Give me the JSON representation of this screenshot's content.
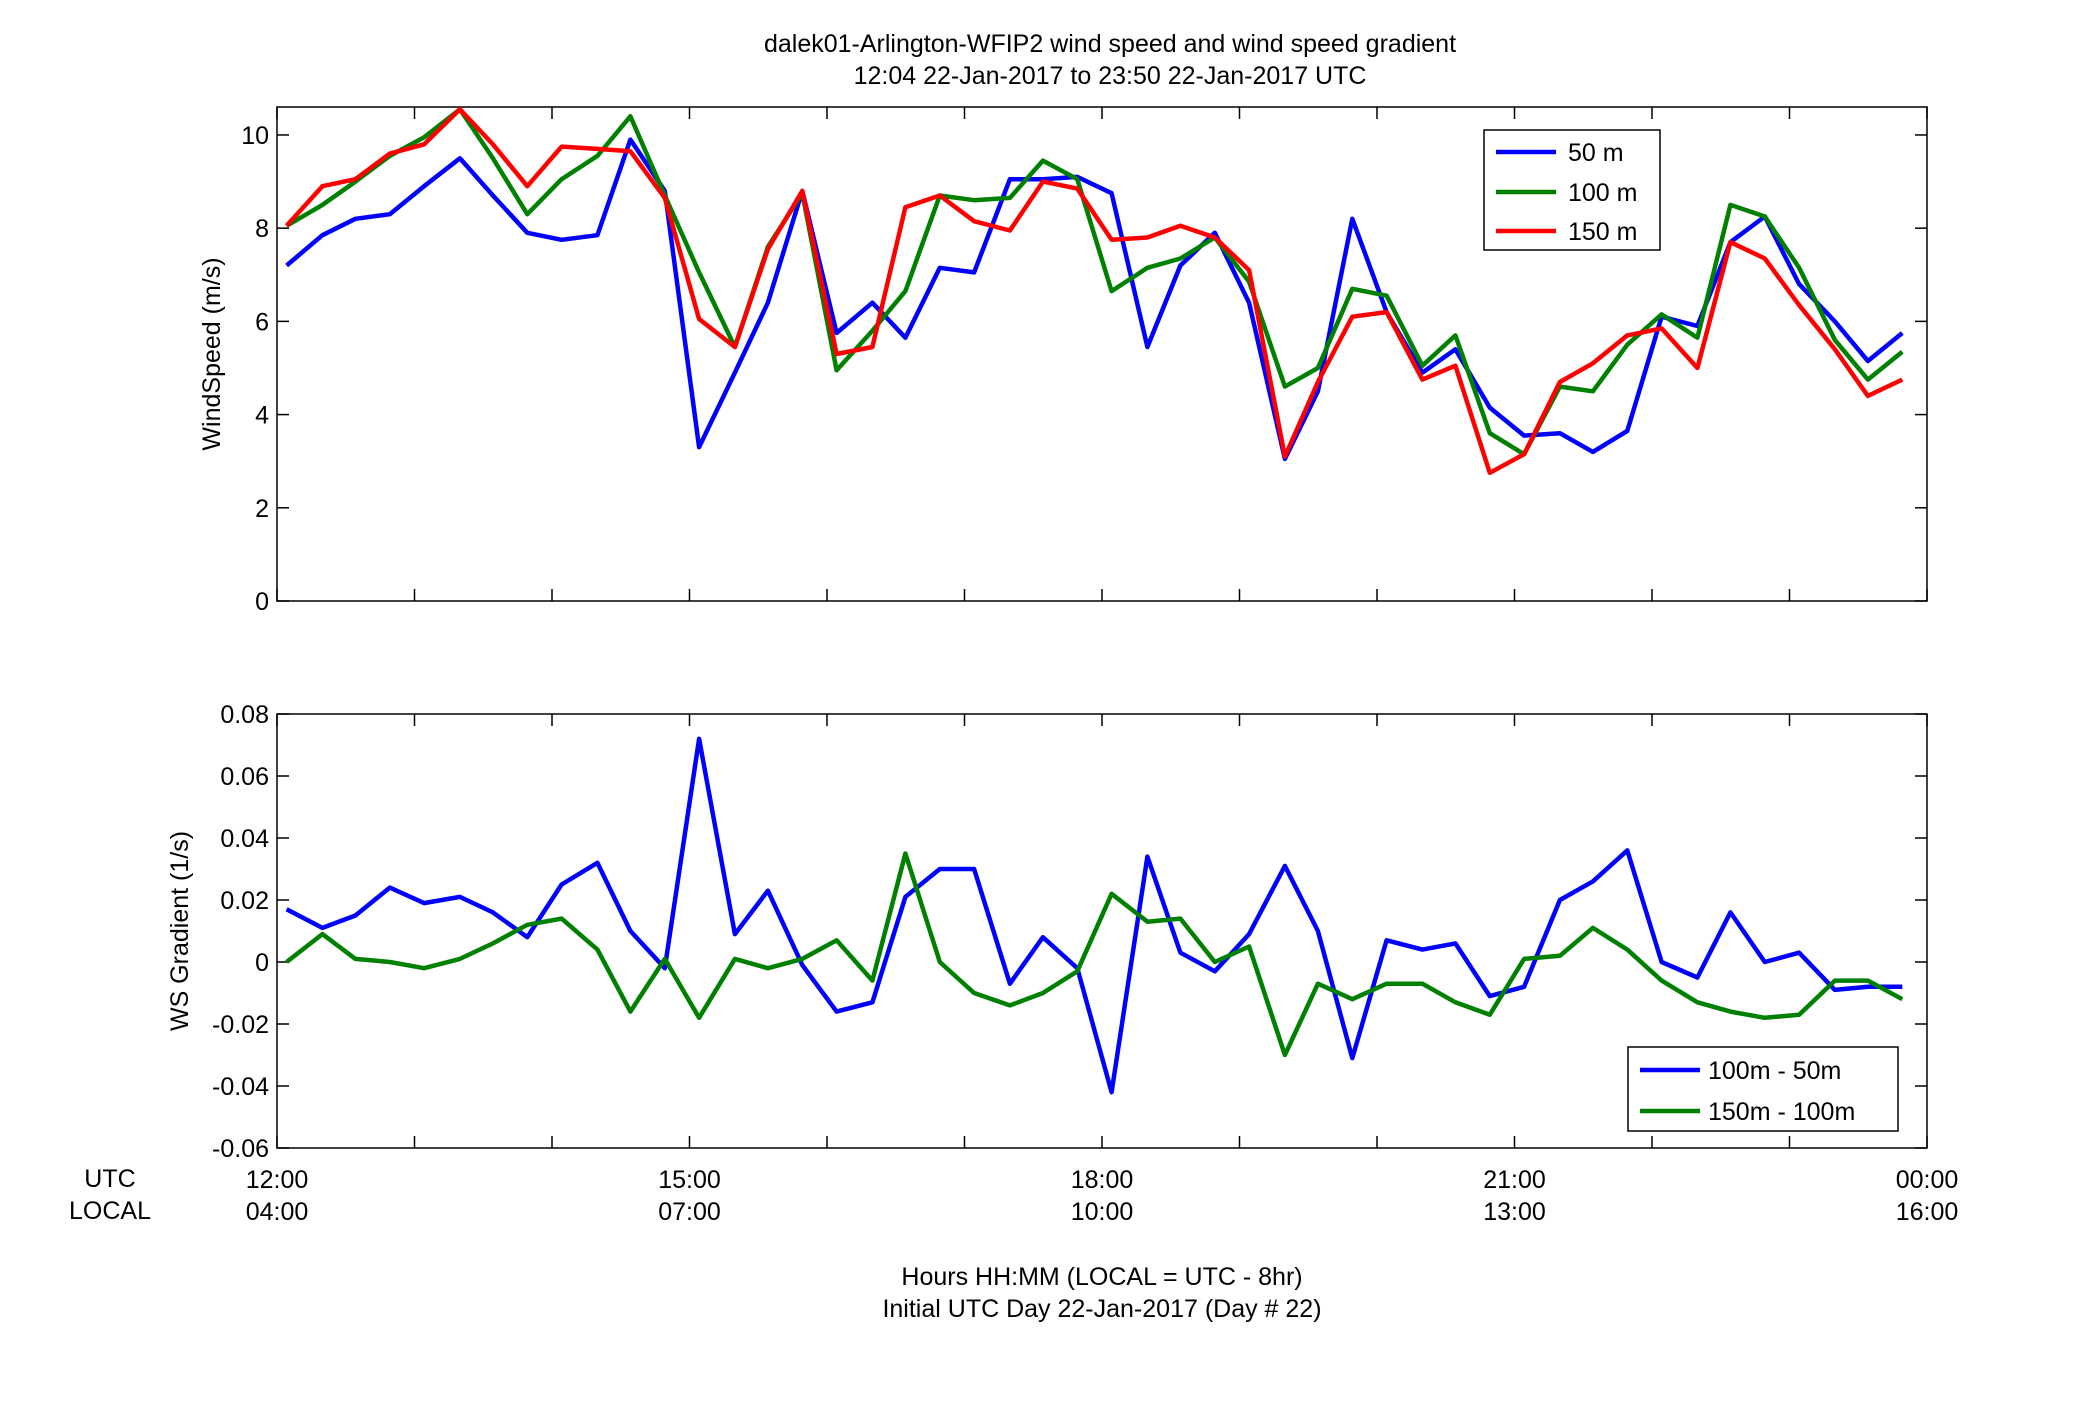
{
  "figure": {
    "title_line1": "dalek01-Arlington-WFIP2  wind speed and wind speed gradient",
    "title_line2": "12:04 22-Jan-2017 to 23:50 22-Jan-2017  UTC",
    "xlabel_line1": "Hours HH:MM  (LOCAL = UTC - 8hr)",
    "xlabel_line2": "Initial UTC Day 22-Jan-2017 (Day # 22)",
    "row_label_utc": "UTC",
    "row_label_local": "LOCAL"
  },
  "chart_data": [
    {
      "type": "line",
      "ylabel": "WindSpeed (m/s)",
      "xlim": [
        12,
        24
      ],
      "ylim": [
        0,
        10.6
      ],
      "yticks": [
        0,
        2,
        4,
        6,
        8,
        10
      ],
      "ytick_labels": [
        "0",
        "2",
        "4",
        "6",
        "8",
        "10"
      ],
      "grid": false,
      "legend": "top-right",
      "x": [
        12.07,
        12.33,
        12.57,
        12.82,
        13.07,
        13.33,
        13.57,
        13.82,
        14.07,
        14.33,
        14.57,
        14.82,
        15.07,
        15.33,
        15.57,
        15.82,
        16.07,
        16.33,
        16.57,
        16.82,
        17.07,
        17.33,
        17.57,
        17.82,
        18.07,
        18.33,
        18.57,
        18.82,
        19.07,
        19.33,
        19.57,
        19.82,
        20.07,
        20.33,
        20.57,
        20.82,
        21.07,
        21.33,
        21.57,
        21.82,
        22.07,
        22.33,
        22.57,
        22.82,
        23.07,
        23.33,
        23.57,
        23.82
      ],
      "series": [
        {
          "name": "50 m",
          "color": "#0000ff",
          "values": [
            7.2,
            7.85,
            8.2,
            8.3,
            8.9,
            9.5,
            8.7,
            7.9,
            7.75,
            7.85,
            9.9,
            8.8,
            3.3,
            4.9,
            6.4,
            8.8,
            5.75,
            6.4,
            5.65,
            7.15,
            7.05,
            9.05,
            9.05,
            9.1,
            8.75,
            5.45,
            7.2,
            7.9,
            6.4,
            3.05,
            4.5,
            8.2,
            6.2,
            4.9,
            5.4,
            4.15,
            3.55,
            3.6,
            3.2,
            3.65,
            6.1,
            5.9,
            7.7,
            8.25,
            6.8,
            6.0,
            5.15,
            5.75
          ]
        },
        {
          "name": "100 m",
          "color": "#008000",
          "values": [
            8.05,
            8.5,
            9.0,
            9.55,
            9.95,
            10.55,
            9.5,
            8.3,
            9.05,
            9.55,
            10.4,
            8.7,
            7.05,
            5.45,
            7.6,
            8.75,
            4.95,
            5.8,
            6.65,
            8.7,
            8.6,
            8.65,
            9.45,
            9.05,
            6.65,
            7.15,
            7.35,
            7.8,
            6.85,
            4.6,
            5.0,
            6.7,
            6.55,
            5.05,
            5.7,
            3.6,
            3.15,
            4.6,
            4.5,
            5.5,
            6.15,
            5.65,
            8.5,
            8.25,
            7.15,
            5.6,
            4.75,
            5.35
          ]
        },
        {
          "name": "150 m",
          "color": "#ff0000",
          "values": [
            8.05,
            8.9,
            9.05,
            9.6,
            9.8,
            10.55,
            9.8,
            8.9,
            9.75,
            9.7,
            9.65,
            8.65,
            6.05,
            5.45,
            7.55,
            8.8,
            5.3,
            5.45,
            8.45,
            8.7,
            8.15,
            7.95,
            9.0,
            8.85,
            7.75,
            7.8,
            8.05,
            7.8,
            7.1,
            3.1,
            4.7,
            6.1,
            6.2,
            4.75,
            5.05,
            2.75,
            3.15,
            4.7,
            5.1,
            5.7,
            5.85,
            5.0,
            7.7,
            7.35,
            6.35,
            5.4,
            4.4,
            4.75
          ]
        }
      ]
    },
    {
      "type": "line",
      "ylabel": "WS Gradient (1/s)",
      "xlim": [
        12,
        24
      ],
      "ylim": [
        -0.06,
        0.08
      ],
      "yticks": [
        -0.06,
        -0.04,
        -0.02,
        0,
        0.02,
        0.04,
        0.06,
        0.08
      ],
      "ytick_labels": [
        "-0.06",
        "-0.04",
        "-0.02",
        "0",
        "0.02",
        "0.04",
        "0.06",
        "0.08"
      ],
      "xticks": [
        12,
        15,
        18,
        21,
        24
      ],
      "xtick_labels_utc": [
        "12:00",
        "15:00",
        "18:00",
        "21:00",
        "00:00"
      ],
      "xtick_labels_local": [
        "04:00",
        "07:00",
        "10:00",
        "13:00",
        "16:00"
      ],
      "grid": false,
      "legend": "bottom-right",
      "x": [
        12.07,
        12.33,
        12.57,
        12.82,
        13.07,
        13.33,
        13.57,
        13.82,
        14.07,
        14.33,
        14.57,
        14.82,
        15.07,
        15.33,
        15.57,
        15.82,
        16.07,
        16.33,
        16.57,
        16.82,
        17.07,
        17.33,
        17.57,
        17.82,
        18.07,
        18.33,
        18.57,
        18.82,
        19.07,
        19.33,
        19.57,
        19.82,
        20.07,
        20.33,
        20.57,
        20.82,
        21.07,
        21.33,
        21.57,
        21.82,
        22.07,
        22.33,
        22.57,
        22.82,
        23.07,
        23.33,
        23.57,
        23.82
      ],
      "series": [
        {
          "name": "100m - 50m",
          "color": "#0000ff",
          "values": [
            0.017,
            0.011,
            0.015,
            0.024,
            0.019,
            0.021,
            0.016,
            0.008,
            0.025,
            0.032,
            0.01,
            -0.002,
            0.072,
            0.009,
            0.023,
            -0.001,
            -0.016,
            -0.013,
            0.021,
            0.03,
            0.03,
            -0.007,
            0.008,
            -0.002,
            -0.042,
            0.034,
            0.003,
            -0.003,
            0.009,
            0.031,
            0.01,
            -0.031,
            0.007,
            0.004,
            0.006,
            -0.011,
            -0.008,
            0.02,
            0.026,
            0.036,
            0.0,
            -0.005,
            0.016,
            0.0,
            0.003,
            -0.009,
            -0.008,
            -0.008
          ]
        },
        {
          "name": "150m - 100m",
          "color": "#008000",
          "values": [
            0.0,
            0.009,
            0.001,
            0.0,
            -0.002,
            0.001,
            0.006,
            0.012,
            0.014,
            0.004,
            -0.016,
            0.001,
            -0.018,
            0.001,
            -0.002,
            0.001,
            0.007,
            -0.006,
            0.035,
            0.0,
            -0.01,
            -0.014,
            -0.01,
            -0.003,
            0.022,
            0.013,
            0.014,
            0.0,
            0.005,
            -0.03,
            -0.007,
            -0.012,
            -0.007,
            -0.007,
            -0.013,
            -0.017,
            0.001,
            0.002,
            0.011,
            0.004,
            -0.006,
            -0.013,
            -0.016,
            -0.018,
            -0.017,
            -0.006,
            -0.006,
            -0.012
          ]
        }
      ]
    }
  ]
}
